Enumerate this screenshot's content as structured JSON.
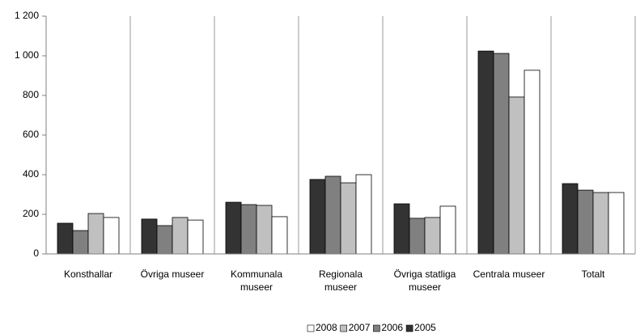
{
  "chart_data": {
    "type": "bar",
    "categories": [
      "Konsthallar",
      "Övriga museer",
      "Kommunala museer",
      "Regionala museer",
      "Övriga statliga museer",
      "Centrala museer",
      "Totalt"
    ],
    "series": [
      {
        "name": "2005",
        "color": "#333333",
        "values": [
          155,
          176,
          261,
          376,
          253,
          1024,
          355
        ]
      },
      {
        "name": "2006",
        "color": "#808080",
        "values": [
          118,
          143,
          249,
          392,
          180,
          1012,
          322
        ]
      },
      {
        "name": "2007",
        "color": "#c0c0c0",
        "values": [
          204,
          184,
          245,
          359,
          184,
          792,
          310
        ]
      },
      {
        "name": "2008",
        "color": "#ffffff",
        "values": [
          184,
          171,
          188,
          400,
          241,
          927,
          310
        ]
      }
    ],
    "ylim": [
      0,
      1200
    ],
    "yticks": [
      0,
      200,
      400,
      600,
      800,
      {
        "value": 1000,
        "label": "1 000"
      },
      {
        "value": 1200,
        "label": "1 200"
      }
    ],
    "grid": "vertical",
    "legend": "bottom"
  }
}
